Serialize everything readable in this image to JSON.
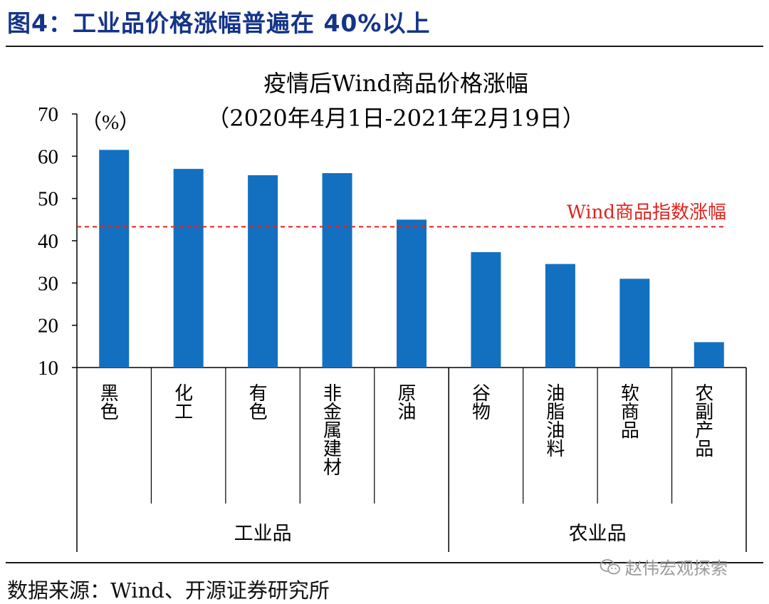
{
  "figure_title": "图4：工业品价格涨幅普遍在 40%以上",
  "source_text": "数据来源：Wind、开源证券研究所",
  "watermark_text": "赵伟宏观探索",
  "chart_data": {
    "type": "bar",
    "title": "疫情后Wind商品价格涨幅",
    "subtitle": "（2020年4月1日-2021年2月19日）",
    "y_unit": "（%）",
    "ylim": [
      10,
      70
    ],
    "yticks": [
      10,
      20,
      30,
      40,
      50,
      60,
      70
    ],
    "categories": [
      "黑色",
      "化工",
      "有色",
      "非金属建材",
      "原油",
      "谷物",
      "油脂油料",
      "软商品",
      "农副产品"
    ],
    "values": [
      61.5,
      57,
      55.5,
      56,
      45,
      37.3,
      34.5,
      31,
      16
    ],
    "groups": [
      {
        "label": "工业品",
        "count": 5
      },
      {
        "label": "农业品",
        "count": 4
      }
    ],
    "reference_line": {
      "label": "Wind商品指数涨幅",
      "value": 43.3,
      "color": "#e0231d"
    },
    "bar_color": "#1370c0",
    "grid": false
  }
}
